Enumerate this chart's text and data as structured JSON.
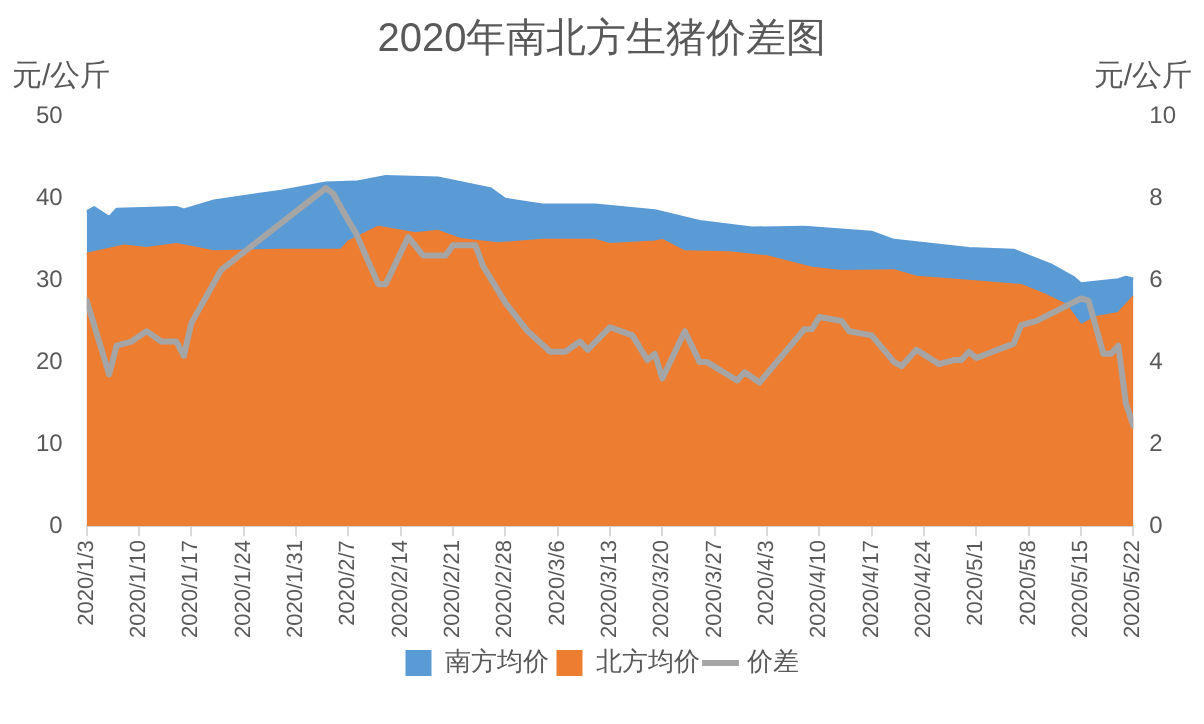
{
  "chart_data": {
    "type": "area",
    "title": "2020年南北方生猪价差图",
    "ylabel": "元/公斤",
    "y2label": "元/公斤",
    "xlim": [
      "2020-01-03",
      "2020-05-22"
    ],
    "xticks": [
      {
        "value": "2020-01-03",
        "label": "2020/1/3"
      },
      {
        "value": "2020-01-10",
        "label": "2020/1/10"
      },
      {
        "value": "2020-01-17",
        "label": "2020/1/17"
      },
      {
        "value": "2020-01-24",
        "label": "2020/1/24"
      },
      {
        "value": "2020-01-31",
        "label": "2020/1/31"
      },
      {
        "value": "2020-02-07",
        "label": "2020/2/7"
      },
      {
        "value": "2020-02-14",
        "label": "2020/2/14"
      },
      {
        "value": "2020-02-21",
        "label": "2020/2/21"
      },
      {
        "value": "2020-02-28",
        "label": "2020/2/28"
      },
      {
        "value": "2020-03-06",
        "label": "2020/3/6"
      },
      {
        "value": "2020-03-13",
        "label": "2020/3/13"
      },
      {
        "value": "2020-03-20",
        "label": "2020/3/20"
      },
      {
        "value": "2020-03-27",
        "label": "2020/3/27"
      },
      {
        "value": "2020-04-03",
        "label": "2020/4/3"
      },
      {
        "value": "2020-04-10",
        "label": "2020/4/10"
      },
      {
        "value": "2020-04-17",
        "label": "2020/4/17"
      },
      {
        "value": "2020-04-24",
        "label": "2020/4/24"
      },
      {
        "value": "2020-05-01",
        "label": "2020/5/1"
      },
      {
        "value": "2020-05-08",
        "label": "2020/5/8"
      },
      {
        "value": "2020-05-15",
        "label": "2020/5/15"
      },
      {
        "value": "2020-05-22",
        "label": "2020/5/22"
      }
    ],
    "ylim": [
      0,
      50
    ],
    "yticks": [
      0,
      10,
      20,
      30,
      40,
      50
    ],
    "y2lim": [
      0,
      10
    ],
    "y2ticks": [
      0,
      2,
      4,
      6,
      8,
      10
    ],
    "grid": false,
    "legend": "bottom",
    "marker": "none",
    "series": [
      {
        "name": "南方均价",
        "color": "#5b9bd5",
        "x": [
          "2020-01-03",
          "2020-01-04",
          "2020-01-06",
          "2020-01-07",
          "2020-01-15",
          "2020-01-16",
          "2020-01-20",
          "2020-01-29",
          "2020-02-04",
          "2020-02-08",
          "2020-02-12",
          "2020-02-19",
          "2020-02-26",
          "2020-02-28",
          "2020-03-04",
          "2020-03-11",
          "2020-03-19",
          "2020-03-25",
          "2020-04-01",
          "2020-04-08",
          "2020-04-17",
          "2020-04-20",
          "2020-04-30",
          "2020-05-06",
          "2020-05-11",
          "2020-05-14",
          "2020-05-15",
          "2020-05-20",
          "2020-05-21",
          "2020-05-22"
        ],
        "values": [
          38.4,
          38.9,
          37.7,
          38.7,
          38.9,
          38.6,
          39.7,
          40.9,
          41.9,
          42.0,
          42.7,
          42.5,
          41.2,
          39.9,
          39.2,
          39.2,
          38.5,
          37.2,
          36.4,
          36.5,
          35.9,
          34.9,
          33.9,
          33.7,
          31.9,
          30.4,
          29.6,
          30.1,
          30.4,
          30.2
        ]
      },
      {
        "name": "北方均价",
        "color": "#ed7d31",
        "x": [
          "2020-01-03",
          "2020-01-08",
          "2020-01-11",
          "2020-01-15",
          "2020-01-20",
          "2020-01-29",
          "2020-02-06",
          "2020-02-07",
          "2020-02-11",
          "2020-02-16",
          "2020-02-19",
          "2020-02-22",
          "2020-02-27",
          "2020-03-04",
          "2020-03-11",
          "2020-03-13",
          "2020-03-19",
          "2020-03-20",
          "2020-03-23",
          "2020-03-29",
          "2020-04-03",
          "2020-04-09",
          "2020-04-13",
          "2020-04-20",
          "2020-04-23",
          "2020-04-30",
          "2020-05-07",
          "2020-05-10",
          "2020-05-13",
          "2020-05-15",
          "2020-05-17",
          "2020-05-20",
          "2020-05-22"
        ],
        "values": [
          33.2,
          34.2,
          33.9,
          34.4,
          33.5,
          33.7,
          33.7,
          34.7,
          36.5,
          35.7,
          36.0,
          35.0,
          34.5,
          34.9,
          34.9,
          34.4,
          34.7,
          34.9,
          33.5,
          33.4,
          32.9,
          31.5,
          31.1,
          31.2,
          30.4,
          29.9,
          29.4,
          28.3,
          27.0,
          24.5,
          25.5,
          26.0,
          28.0
        ]
      },
      {
        "name": "价差",
        "type": "line",
        "axis": "y2",
        "color": "#a5a5a5",
        "x": [
          "2020-01-03",
          "2020-01-06",
          "2020-01-07",
          "2020-01-09",
          "2020-01-11",
          "2020-01-13",
          "2020-01-15",
          "2020-01-16",
          "2020-01-17",
          "2020-01-21",
          "2020-02-04",
          "2020-02-05",
          "2020-02-07",
          "2020-02-08",
          "2020-02-11",
          "2020-02-12",
          "2020-02-15",
          "2020-02-17",
          "2020-02-20",
          "2020-02-21",
          "2020-02-24",
          "2020-02-25",
          "2020-02-28",
          "2020-03-02",
          "2020-03-05",
          "2020-03-07",
          "2020-03-09",
          "2020-03-10",
          "2020-03-13",
          "2020-03-16",
          "2020-03-18",
          "2020-03-19",
          "2020-03-20",
          "2020-03-23",
          "2020-03-25",
          "2020-03-26",
          "2020-03-30",
          "2020-03-31",
          "2020-04-02",
          "2020-04-08",
          "2020-04-09",
          "2020-04-10",
          "2020-04-13",
          "2020-04-14",
          "2020-04-17",
          "2020-04-20",
          "2020-04-21",
          "2020-04-23",
          "2020-04-26",
          "2020-04-28",
          "2020-04-29",
          "2020-04-30",
          "2020-05-01",
          "2020-05-06",
          "2020-05-07",
          "2020-05-09",
          "2020-05-15",
          "2020-05-16",
          "2020-05-18",
          "2020-05-19",
          "2020-05-20",
          "2020-05-21",
          "2020-05-22"
        ],
        "values": [
          5.5,
          3.7,
          4.4,
          4.5,
          4.75,
          4.5,
          4.5,
          4.15,
          4.95,
          6.25,
          8.24,
          8.1,
          7.45,
          7.15,
          5.9,
          5.9,
          7.05,
          6.6,
          6.6,
          6.85,
          6.85,
          6.35,
          5.45,
          4.75,
          4.25,
          4.25,
          4.5,
          4.3,
          4.85,
          4.65,
          4.05,
          4.2,
          3.6,
          4.75,
          4.0,
          4.0,
          3.55,
          3.75,
          3.5,
          4.8,
          4.8,
          5.1,
          5.0,
          4.75,
          4.65,
          4.0,
          3.9,
          4.3,
          3.95,
          4.05,
          4.05,
          4.25,
          4.1,
          4.45,
          4.9,
          5.0,
          5.55,
          5.5,
          4.2,
          4.2,
          4.4,
          3.0,
          2.45
        ]
      }
    ]
  }
}
